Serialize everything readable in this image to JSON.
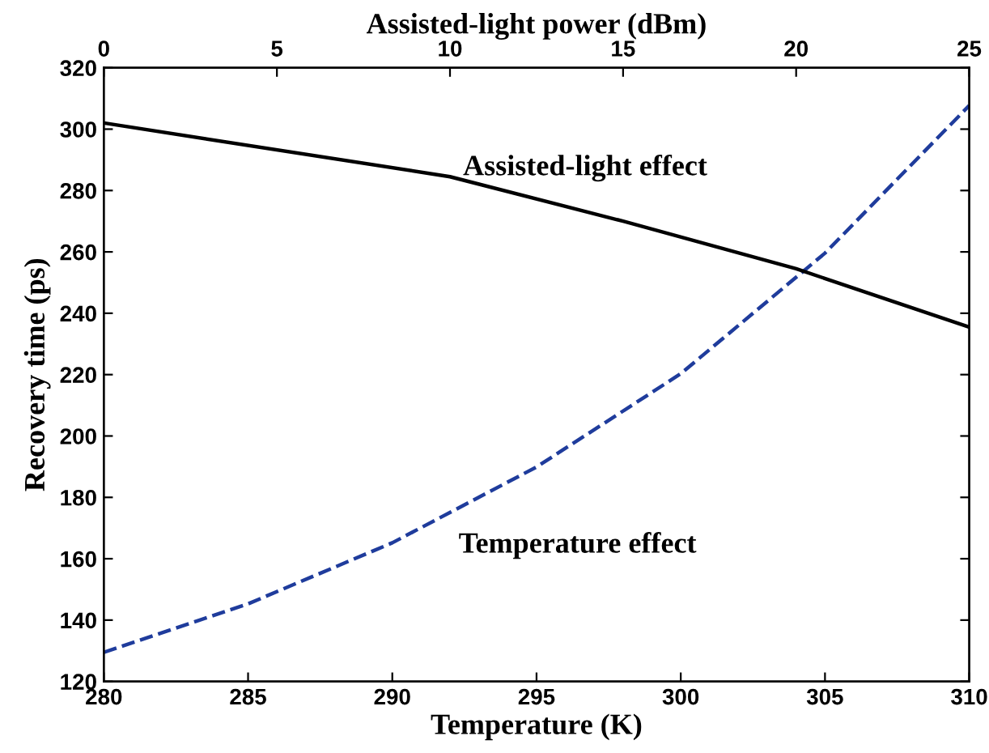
{
  "chart_data": {
    "type": "line",
    "xlabel": "Temperature (K)",
    "x2label": "Assisted-light power (dBm)",
    "ylabel": "Recovery time (ps)",
    "xlim": [
      280,
      310
    ],
    "xticks": [
      280,
      285,
      290,
      295,
      300,
      305,
      310
    ],
    "x2lim": [
      0,
      25
    ],
    "x2ticks": [
      0,
      5,
      10,
      15,
      20,
      25
    ],
    "ylim": [
      120,
      320
    ],
    "yticks": [
      120,
      140,
      160,
      180,
      200,
      220,
      240,
      260,
      280,
      300,
      320
    ],
    "grid": false,
    "legend": false,
    "series": [
      {
        "axis": "x2",
        "color": "#000000",
        "line_style": "solid",
        "x": [
          0,
          10,
          15,
          20,
          25
        ],
        "values": [
          302,
          284.5,
          270,
          254.5,
          235.5
        ]
      },
      {
        "color": "#1f3c9c",
        "line_style": "dashed",
        "x": [
          280,
          285,
          290,
          295,
          300,
          305,
          310
        ],
        "values": [
          129.5,
          145.3,
          165.2,
          189.9,
          220.3,
          259.6,
          307.7
        ]
      }
    ],
    "annotations": [
      "Assisted-light effect",
      "Temperature effect"
    ]
  }
}
